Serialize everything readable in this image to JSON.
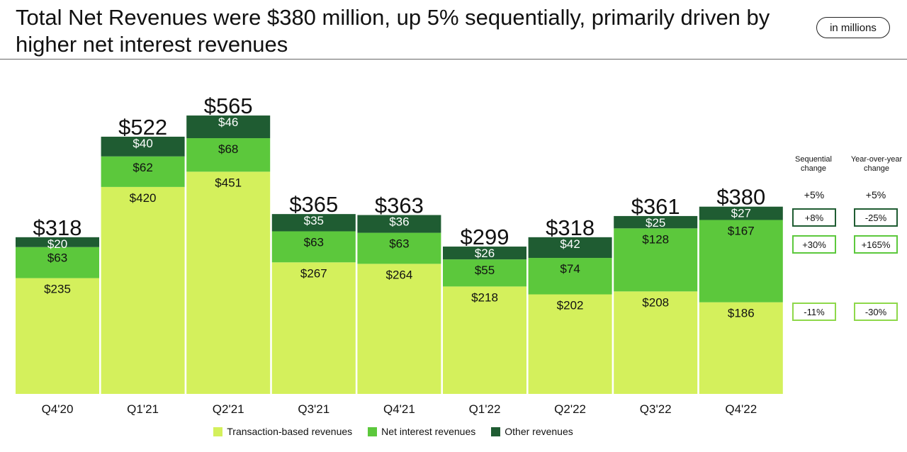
{
  "header": {
    "title": "Total Net Revenues were $380 million, up 5% sequentially, primarily driven by higher net interest revenues",
    "units_label": "in millions"
  },
  "colors": {
    "transaction": "#d4f05c",
    "net_interest": "#5cc83c",
    "other": "#1f5c32"
  },
  "chart_data": {
    "type": "bar",
    "stacked": true,
    "title": "Total Net Revenues were $380 million, up 5% sequentially, primarily driven by higher net interest revenues",
    "units": "in millions",
    "categories": [
      "Q4'20",
      "Q1'21",
      "Q2'21",
      "Q3'21",
      "Q4'21",
      "Q1'22",
      "Q2'22",
      "Q3'22",
      "Q4'22"
    ],
    "series": [
      {
        "name": "Transaction-based revenues",
        "values": [
          235,
          420,
          451,
          267,
          264,
          218,
          202,
          208,
          186
        ]
      },
      {
        "name": "Net interest revenues",
        "values": [
          63,
          62,
          68,
          63,
          63,
          55,
          74,
          128,
          167
        ]
      },
      {
        "name": "Other revenues",
        "values": [
          20,
          40,
          46,
          35,
          36,
          26,
          42,
          25,
          27
        ]
      }
    ],
    "totals": [
      318,
      522,
      565,
      365,
      363,
      299,
      318,
      361,
      380
    ],
    "ylim": [
      0,
      600
    ],
    "legend_position": "bottom"
  },
  "changes": {
    "sequential_header": "Sequential change",
    "yoy_header": "Year-over-year change",
    "total": {
      "sequential": "+5%",
      "yoy": "+5%"
    },
    "other": {
      "sequential": "+8%",
      "yoy": "-25%"
    },
    "net_interest": {
      "sequential": "+30%",
      "yoy": "+165%"
    },
    "transaction": {
      "sequential": "-11%",
      "yoy": "-30%"
    }
  }
}
